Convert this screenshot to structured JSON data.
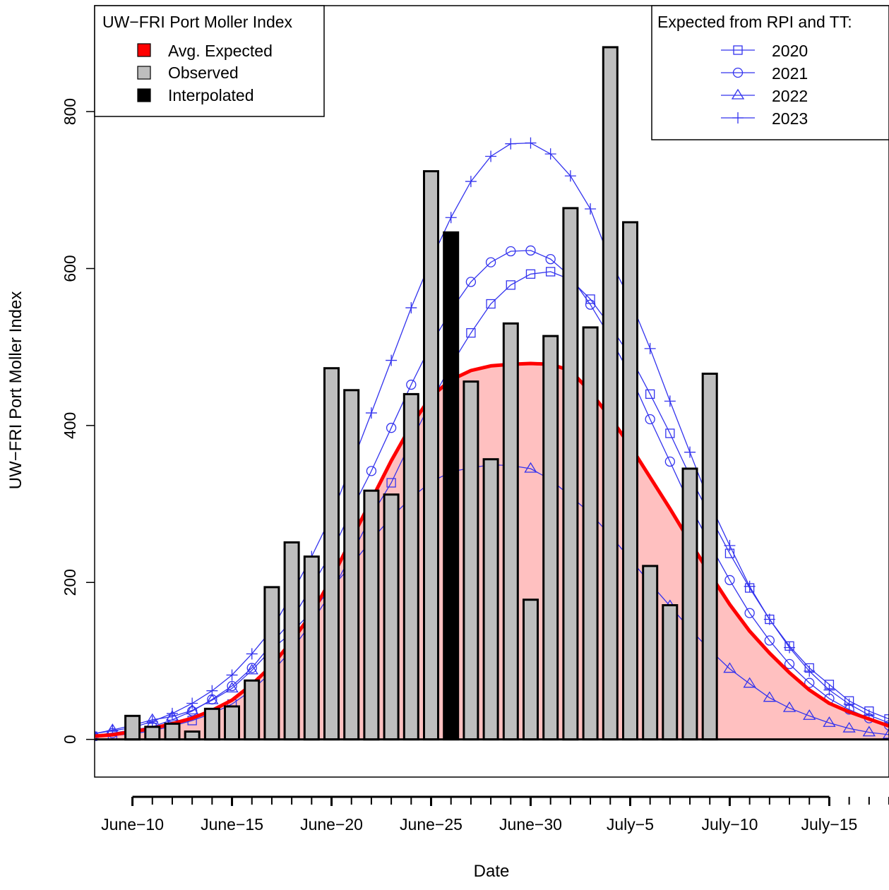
{
  "chart_data": {
    "type": "bar",
    "xlabel": "Date",
    "ylabel": "UW−FRI Port Moller Index",
    "x_tick_labels": [
      {
        "day": 10,
        "label": "June−10"
      },
      {
        "day": 15,
        "label": "June−15"
      },
      {
        "day": 20,
        "label": "June−20"
      },
      {
        "day": 25,
        "label": "June−25"
      },
      {
        "day": 30,
        "label": "June−30"
      },
      {
        "day": 35,
        "label": "July−5"
      },
      {
        "day": 40,
        "label": "July−10"
      },
      {
        "day": 45,
        "label": "July−15"
      }
    ],
    "y_ticks": [
      0,
      200,
      400,
      600,
      800
    ],
    "xlim": [
      8.1,
      48.0
    ],
    "ylim": [
      -48,
      935
    ],
    "colors": {
      "observed": "#bebebe",
      "interpolated": "#000000",
      "expected_fill": "#ffc0c0",
      "expected_line": "#ff0000",
      "scenario_line": "#3333ee"
    },
    "bars": {
      "observed": {
        "x": [
          10,
          11,
          12,
          13,
          14,
          15,
          16,
          17,
          18,
          19,
          20,
          21,
          22,
          23,
          24,
          25,
          27,
          28,
          29,
          30,
          31,
          32,
          33,
          34,
          35,
          36,
          37,
          38,
          39
        ],
        "values": [
          30,
          16,
          20,
          10,
          39,
          42,
          75,
          194,
          251,
          233,
          473,
          445,
          317,
          312,
          440,
          724,
          456,
          357,
          530,
          178,
          514,
          677,
          525,
          882,
          659,
          221,
          171,
          345,
          466
        ]
      },
      "interpolated": {
        "x": [
          26
        ],
        "values": [
          646
        ]
      }
    },
    "avg_expected": {
      "name": "Avg. Expected",
      "x": [
        8,
        9,
        10,
        11,
        12,
        13,
        14,
        15,
        16,
        17,
        18,
        19,
        20,
        21,
        22,
        23,
        24,
        25,
        26,
        27,
        28,
        29,
        30,
        31,
        32,
        33,
        34,
        35,
        36,
        37,
        38,
        39,
        40,
        41,
        42,
        43,
        44,
        45,
        46,
        47,
        48
      ],
      "values": [
        4,
        6,
        10,
        14,
        20,
        27,
        37,
        50,
        70,
        94,
        125,
        160,
        205,
        255,
        305,
        355,
        400,
        437,
        458,
        470,
        476,
        478,
        479,
        478,
        470,
        443,
        410,
        374,
        334,
        294,
        252,
        211,
        172,
        138,
        110,
        85,
        63,
        46,
        35,
        26,
        17
      ]
    },
    "series": [
      {
        "name": "2020",
        "marker": "square",
        "x": [
          8,
          9,
          10,
          11,
          12,
          13,
          14,
          15,
          16,
          17,
          18,
          19,
          20,
          21,
          22,
          23,
          24,
          25,
          26,
          27,
          28,
          29,
          30,
          31,
          32,
          33,
          34,
          35,
          36,
          37,
          38,
          39,
          40,
          41,
          42,
          43,
          44,
          45,
          46,
          47,
          48
        ],
        "values": [
          4,
          5,
          7,
          11,
          17,
          24,
          33,
          45,
          63,
          86,
          114,
          149,
          188,
          235,
          285,
          327,
          380,
          430,
          477,
          518,
          555,
          579,
          593,
          596,
          586,
          561,
          527,
          488,
          440,
          390,
          336,
          285,
          237,
          193,
          153,
          119,
          91,
          70,
          49,
          36,
          26
        ]
      },
      {
        "name": "2021",
        "marker": "circle",
        "x": [
          8,
          9,
          10,
          11,
          12,
          13,
          14,
          15,
          16,
          17,
          18,
          19,
          20,
          21,
          22,
          23,
          24,
          25,
          26,
          27,
          28,
          29,
          30,
          31,
          32,
          33,
          34,
          35,
          36,
          37,
          38,
          39,
          40,
          41,
          42,
          43,
          44,
          45,
          46,
          47,
          48
        ],
        "values": [
          5,
          8,
          12,
          16,
          25,
          36,
          51,
          68,
          91,
          122,
          152,
          195,
          238,
          292,
          342,
          397,
          452,
          503,
          547,
          583,
          608,
          622,
          623,
          612,
          590,
          554,
          512,
          464,
          408,
          354,
          299,
          249,
          203,
          161,
          126,
          96,
          72,
          52,
          38,
          27,
          18
        ]
      },
      {
        "name": "2022",
        "marker": "triangle",
        "x": [
          8,
          9,
          10,
          11,
          12,
          13,
          14,
          15,
          16,
          17,
          18,
          19,
          20,
          21,
          22,
          23,
          24,
          25,
          26,
          27,
          28,
          29,
          30,
          31,
          32,
          33,
          34,
          35,
          36,
          37,
          38,
          39,
          40,
          41,
          42,
          43,
          44,
          45,
          46,
          47,
          48
        ],
        "values": [
          7,
          12,
          18,
          25,
          29,
          37,
          50,
          65,
          88,
          115,
          136,
          163,
          193,
          222,
          254,
          283,
          308,
          328,
          341,
          346,
          350,
          349,
          345,
          331,
          310,
          288,
          260,
          230,
          199,
          170,
          141,
          114,
          90,
          71,
          53,
          40,
          30,
          21,
          14,
          9,
          6
        ]
      },
      {
        "name": "2023",
        "marker": "plus",
        "x": [
          8,
          9,
          10,
          11,
          12,
          13,
          14,
          15,
          16,
          17,
          18,
          19,
          20,
          21,
          22,
          23,
          24,
          25,
          26,
          27,
          28,
          29,
          30,
          31,
          32,
          33,
          34,
          35,
          36,
          37,
          38,
          39,
          40,
          41,
          42,
          43,
          44,
          45,
          46,
          47,
          48
        ],
        "values": [
          7,
          11,
          15,
          23,
          33,
          46,
          62,
          82,
          109,
          140,
          185,
          233,
          285,
          350,
          416,
          483,
          550,
          611,
          665,
          711,
          743,
          759,
          760,
          746,
          718,
          676,
          610,
          560,
          498,
          431,
          366,
          301,
          247,
          195,
          153,
          117,
          87,
          63,
          45,
          31,
          21
        ]
      }
    ],
    "legend_left": {
      "title": "UW−FRI Port Moller Index",
      "position": "top-left",
      "entries": [
        "Avg. Expected",
        "Observed",
        "Interpolated"
      ]
    },
    "legend_right": {
      "title": "Expected from RPI and TT:",
      "position": "top-right",
      "entries": [
        "2020",
        "2021",
        "2022",
        "2023"
      ]
    }
  }
}
